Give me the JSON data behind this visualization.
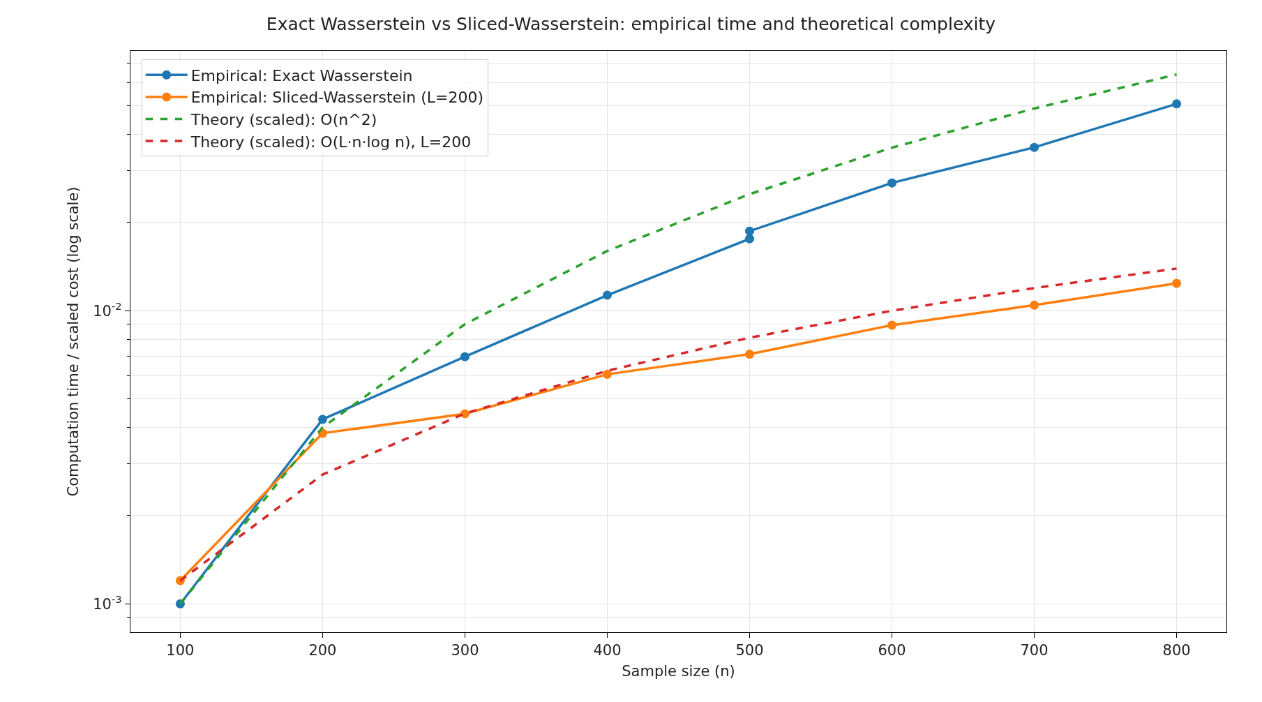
{
  "chart_data": {
    "type": "line",
    "title": "Exact Wasserstein vs Sliced-Wasserstein: empirical time and theoretical complexity",
    "xlabel": "Sample size (n)",
    "ylabel": "Computation time / scaled cost (log scale)",
    "series": [
      {
        "name": "Empirical: Exact Wasserstein",
        "color": "#1f77b4",
        "marker": "circle",
        "line_style": "solid",
        "x": [
          100,
          200,
          300,
          400,
          500,
          500,
          600,
          700,
          800
        ],
        "values": [
          0.001,
          0.00426,
          0.00697,
          0.0113,
          0.0176,
          0.0187,
          0.0273,
          0.0361,
          0.0508
        ]
      },
      {
        "name": "Empirical: Sliced-Wasserstein (L=200)",
        "color": "#ff7f0e",
        "marker": "circle",
        "line_style": "solid",
        "x": [
          100,
          200,
          300,
          400,
          500,
          600,
          700,
          800
        ],
        "values": [
          0.0012,
          0.00382,
          0.00445,
          0.00607,
          0.00711,
          0.00893,
          0.01045,
          0.0124
        ]
      },
      {
        "name": "Theory (scaled): O(n^2)",
        "color": "#2ca02c",
        "marker": "none",
        "line_style": "dashed",
        "x": [
          100,
          200,
          300,
          400,
          500,
          600,
          700,
          800
        ],
        "values": [
          0.001,
          0.004,
          0.009,
          0.016,
          0.025,
          0.036,
          0.049,
          0.064
        ]
      },
      {
        "name": "Theory (scaled): O(L·n·log n), L=200",
        "color": "#d62728",
        "marker": "none",
        "line_style": "dashed",
        "x": [
          100,
          200,
          300,
          400,
          500,
          600,
          700,
          800
        ],
        "values": [
          0.0012,
          0.00276,
          0.00446,
          0.00624,
          0.00809,
          0.01,
          0.01195,
          0.01393
        ]
      }
    ],
    "log": "y",
    "grid": true,
    "legend": "top left",
    "xlim": [
      65,
      835
    ],
    "xticks": [
      100,
      200,
      300,
      400,
      500,
      600,
      700,
      800
    ],
    "ylim": [
      0.0008,
      0.077
    ],
    "yticks": [
      {
        "value": 0.0009,
        "label": null
      },
      {
        "value": 0.001,
        "label": "10$^{-3}$"
      },
      {
        "value": 0.002,
        "label": null
      },
      {
        "value": 0.003,
        "label": null
      },
      {
        "value": 0.004,
        "label": null
      },
      {
        "value": 0.005,
        "label": null
      },
      {
        "value": 0.006,
        "label": null
      },
      {
        "value": 0.007,
        "label": null
      },
      {
        "value": 0.008,
        "label": null
      },
      {
        "value": 0.009,
        "label": null
      },
      {
        "value": 0.01,
        "label": "10$^{-2}$"
      },
      {
        "value": 0.02,
        "label": null
      },
      {
        "value": 0.03,
        "label": null
      },
      {
        "value": 0.04,
        "label": null
      },
      {
        "value": 0.05,
        "label": null
      },
      {
        "value": 0.06,
        "label": null
      },
      {
        "value": 0.07,
        "label": null
      }
    ]
  }
}
